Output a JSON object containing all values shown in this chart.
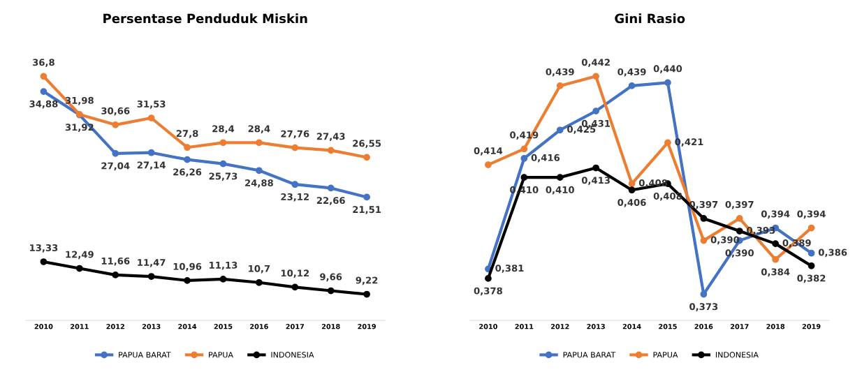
{
  "chart_data": [
    {
      "type": "line",
      "title": "Persentase Penduduk Miskin",
      "categories": [
        "2010",
        "2011",
        "2012",
        "2013",
        "2014",
        "2015",
        "2016",
        "2017",
        "2018",
        "2019"
      ],
      "marker": "circle",
      "legend": "bottom",
      "grid": false,
      "series": [
        {
          "name": "PAPUA BARAT",
          "color": "#4472c4",
          "values": [
            34.88,
            31.92,
            27.04,
            27.14,
            26.26,
            25.73,
            24.88,
            23.12,
            22.66,
            21.51
          ],
          "value_labels": [
            "34,88",
            "31,92",
            "27,04",
            "27,14",
            "26,26",
            "25,73",
            "24,88",
            "23,12",
            "22,66",
            "21,51"
          ]
        },
        {
          "name": "PAPUA",
          "color": "#ed7d31",
          "values": [
            36.8,
            31.98,
            30.66,
            31.53,
            27.8,
            28.4,
            28.4,
            27.76,
            27.43,
            26.55
          ],
          "value_labels": [
            "36,8",
            "31,98",
            "30,66",
            "31,53",
            "27,8",
            "28,4",
            "28,4",
            "27,76",
            "27,43",
            "26,55"
          ]
        },
        {
          "name": "INDONESIA",
          "color": "#000000",
          "values": [
            13.33,
            12.49,
            11.66,
            11.47,
            10.96,
            11.13,
            10.7,
            10.12,
            9.66,
            9.22
          ],
          "value_labels": [
            "13,33",
            "12,49",
            "11,66",
            "11,47",
            "10,96",
            "11,13",
            "10,7",
            "10,12",
            "9,66",
            "9,22"
          ]
        }
      ]
    },
    {
      "type": "line",
      "title": "Gini Rasio",
      "categories": [
        "2010",
        "2011",
        "2012",
        "2013",
        "2014",
        "2015",
        "2016",
        "2017",
        "2018",
        "2019"
      ],
      "marker": "circle",
      "legend": "bottom",
      "grid": false,
      "series": [
        {
          "name": "PAPUA BARAT",
          "color": "#4472c4",
          "values": [
            0.381,
            0.416,
            0.425,
            0.431,
            0.439,
            0.44,
            0.373,
            0.39,
            0.394,
            0.386
          ],
          "value_labels": [
            "0,381",
            "0,416",
            "0,425",
            "0,431",
            "0,439",
            "0,440",
            "0,373",
            "0,390",
            "0,394",
            "0,386"
          ]
        },
        {
          "name": "PAPUA",
          "color": "#ed7d31",
          "values": [
            0.414,
            0.419,
            0.439,
            0.442,
            0.408,
            0.421,
            0.39,
            0.397,
            0.384,
            0.394
          ],
          "value_labels": [
            "0,414",
            "0,419",
            "0,439",
            "0,442",
            "0,408",
            "0,421",
            "0,390",
            "0,397",
            "0,384",
            "0,394"
          ]
        },
        {
          "name": "INDONESIA",
          "color": "#000000",
          "values": [
            0.378,
            0.41,
            0.41,
            0.413,
            0.406,
            0.408,
            0.397,
            0.393,
            0.389,
            0.382
          ],
          "value_labels": [
            "0,378",
            "0,410",
            "0,410",
            "0,413",
            "0,406",
            "0,408",
            "0,397",
            "0,393",
            "0,389",
            "0,382"
          ]
        }
      ]
    }
  ]
}
